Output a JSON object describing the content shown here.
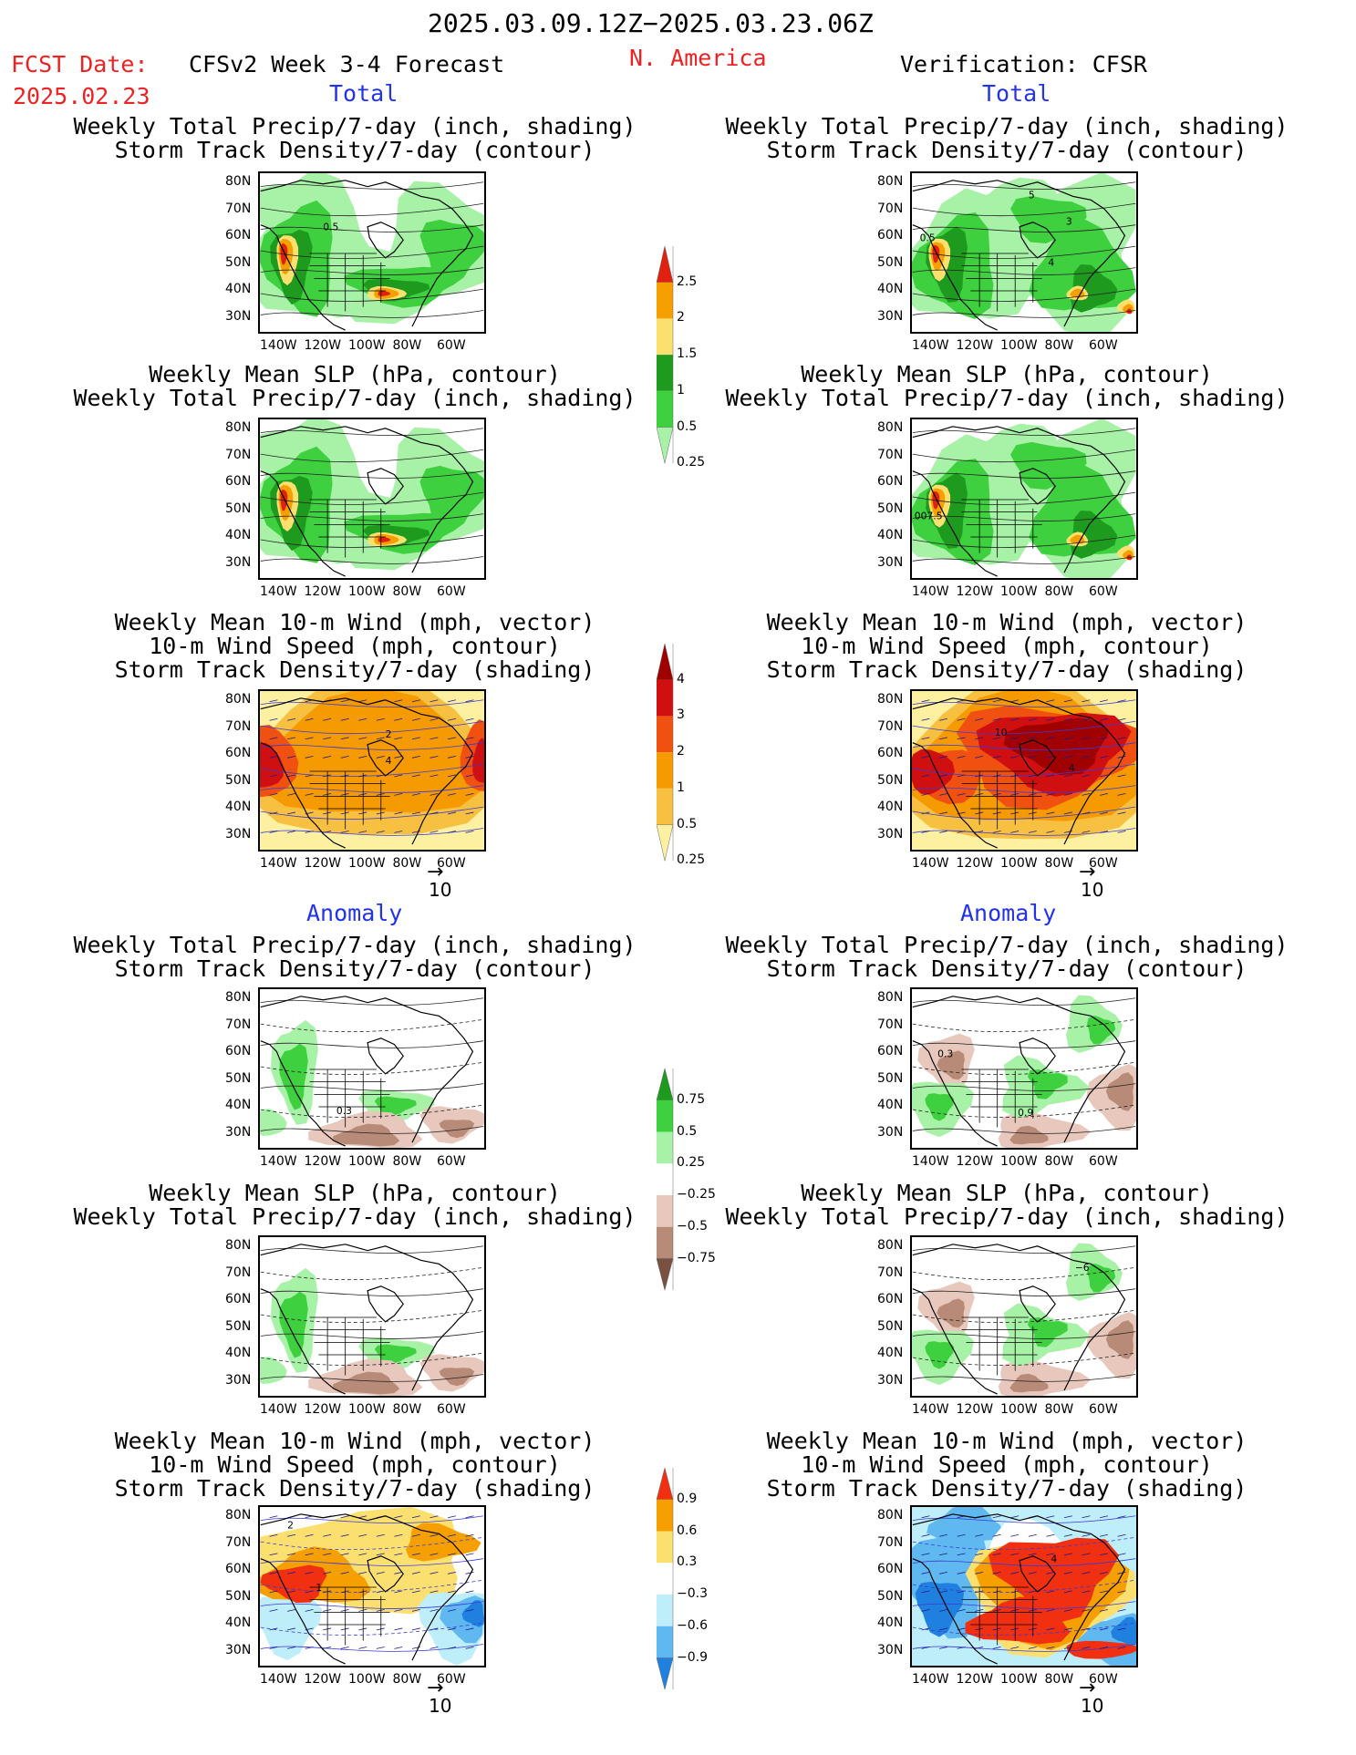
{
  "header": {
    "date_range": "2025.03.09.12Z−2025.03.23.06Z",
    "fcst_label": "FCST Date:",
    "fcst_date": "2025.02.23",
    "model": "CFSv2 Week 3-4 Forecast",
    "region": "N. America",
    "verification": "Verification: CFSR"
  },
  "sections": {
    "total": "Total",
    "anomaly": "Anomaly"
  },
  "panel_titles": {
    "precip_storm": [
      "Weekly Total Precip/7-day (inch, shading)",
      "Storm Track Density/7-day (contour)"
    ],
    "slp_precip": [
      "Weekly Mean SLP (hPa, contour)",
      "Weekly Total Precip/7-day (inch, shading)"
    ],
    "wind_storm": [
      "Weekly Mean 10-m Wind (mph, vector)",
      "10-m Wind Speed (mph, contour)",
      "Storm Track Density/7-day (shading)"
    ]
  },
  "axes": {
    "lat_ticks": [
      "80N",
      "70N",
      "60N",
      "50N",
      "40N",
      "30N"
    ],
    "lon_ticks": [
      "140W",
      "120W",
      "100W",
      "80W",
      "60W"
    ]
  },
  "vector_ref": "10",
  "colorbars": {
    "precip_total": {
      "labels": [
        "2.5",
        "2",
        "1.5",
        "1",
        "0.5",
        "0.25"
      ],
      "colors": [
        "#e02010",
        "#f5a000",
        "#fbe070",
        "#1e9a1e",
        "#3fd03f",
        "#a7f2a7"
      ]
    },
    "storm_total": {
      "labels": [
        "4",
        "3",
        "2",
        "1",
        "0.5",
        "0.25"
      ],
      "colors": [
        "#a00000",
        "#d01010",
        "#f05010",
        "#f59a00",
        "#f7c040",
        "#fdf0a0"
      ]
    },
    "precip_anom": {
      "labels": [
        "0.75",
        "0.5",
        "0.25",
        "−0.25",
        "−0.5",
        "−0.75"
      ],
      "colors": [
        "#1e9a1e",
        "#3fd03f",
        "#a7f2a7",
        "#ffffff",
        "#e8c8bc",
        "#b88a78",
        "#7a5040"
      ]
    },
    "storm_anom": {
      "labels": [
        "0.9",
        "0.6",
        "0.3",
        "−0.3",
        "−0.6",
        "−0.9"
      ],
      "colors": [
        "#f03010",
        "#f5a000",
        "#fbe070",
        "#ffffff",
        "#bfeefb",
        "#60b8f0",
        "#2080e0"
      ]
    }
  },
  "contour_labels": {
    "fc_total_precip": "0.5",
    "ob_total_precip_1": "0.5",
    "ob_total_precip_2": "3",
    "ob_total_precip_3": "4",
    "ob_total_precip_4": "5",
    "ob_total_slp": "007.5",
    "fc_total_wind_1": "2",
    "fc_total_wind_2": "4",
    "ob_total_wind_1": "4",
    "ob_total_wind_2": "10",
    "fc_anom_precip": "0.3",
    "ob_anom_precip_1": "0.3",
    "ob_anom_precip_2": "0.9",
    "ob_anom_slp": "−6",
    "fc_anom_wind_1": "2",
    "fc_anom_wind_2": "1",
    "ob_anom_wind": "4"
  }
}
